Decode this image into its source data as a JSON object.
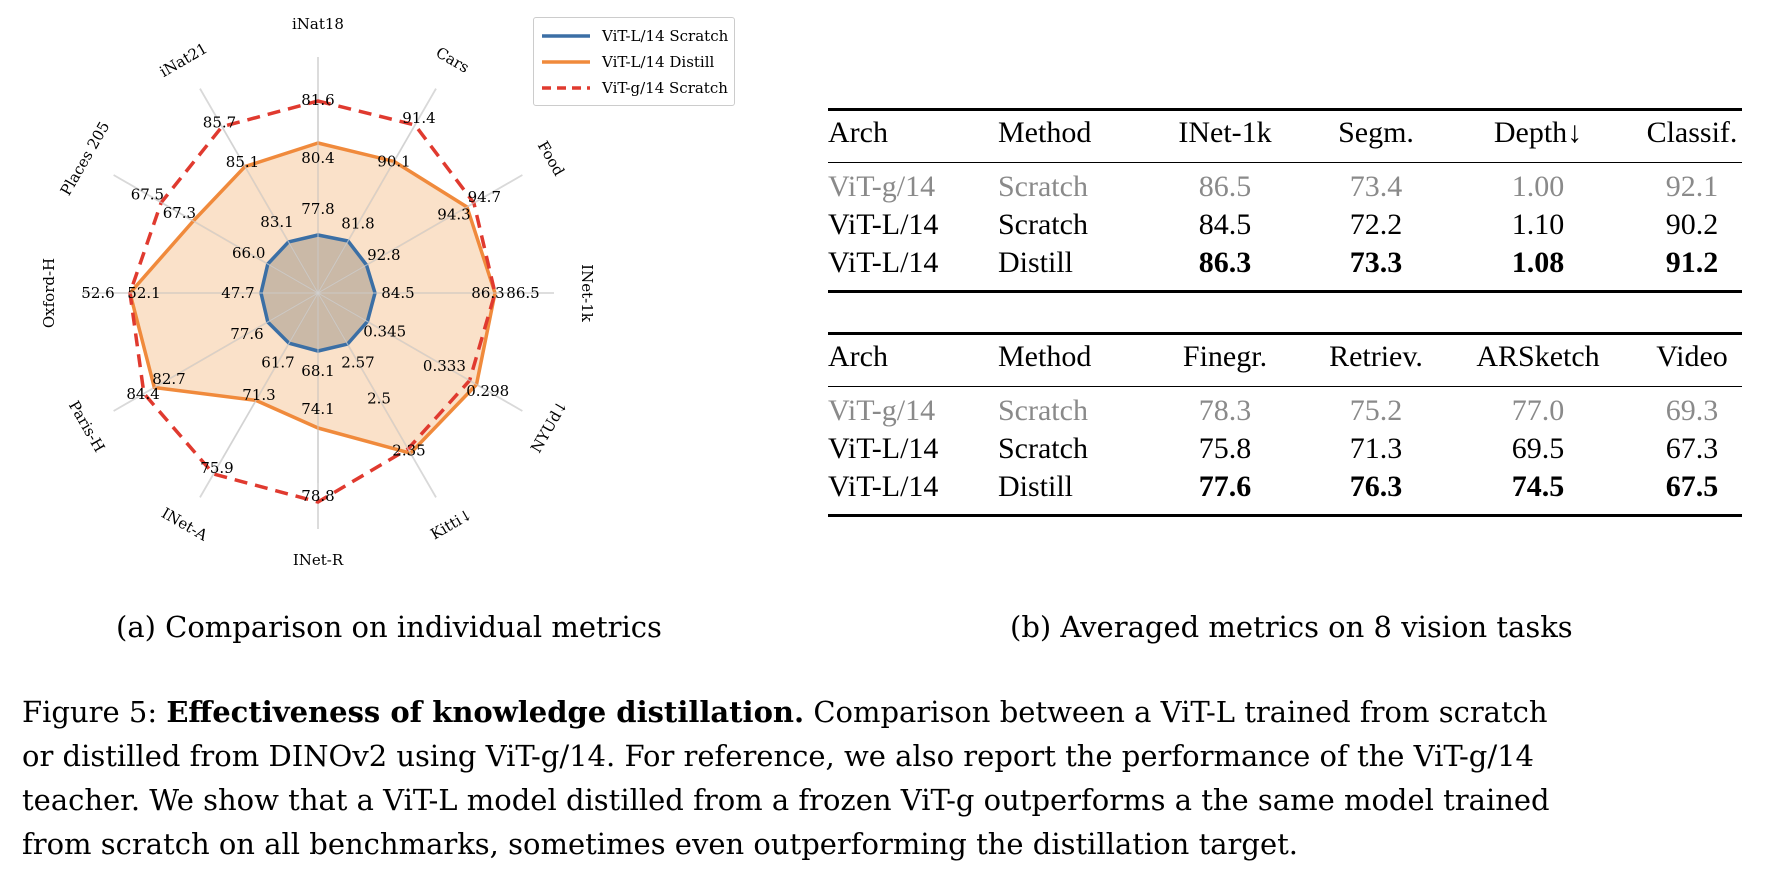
{
  "chart_data": {
    "type": "radar",
    "axes": [
      "iNat18",
      "Cars",
      "Food",
      "INet-1k",
      "NYUd↓",
      "Kitti↓",
      "INet-R",
      "INet-A",
      "Paris-H",
      "Oxford-H",
      "Places 205",
      "iNat21"
    ],
    "legend_placement": "top-right",
    "series": [
      {
        "name": "ViT-L/14 Scratch",
        "color": "#3b6fa5",
        "style": "solid",
        "labels": [
          "77.8",
          "81.8",
          "92.8",
          "84.5",
          "0.345",
          "2.57",
          "68.1",
          "61.7",
          "77.6",
          "47.7",
          "66.0",
          "83.1"
        ],
        "values": [
          77.8,
          81.8,
          92.8,
          84.5,
          0.345,
          2.57,
          68.1,
          61.7,
          77.6,
          47.7,
          66.0,
          83.1
        ]
      },
      {
        "name": "ViT-L/14 Distill",
        "color": "#f08a3c",
        "style": "solid",
        "labels": [
          "80.4",
          "90.1",
          "94.3",
          "86.3",
          "0.333",
          "2.5",
          "74.1",
          "71.3",
          "82.7",
          "52.1",
          "67.3",
          "85.1"
        ],
        "values": [
          80.4,
          90.1,
          94.3,
          86.3,
          0.333,
          2.5,
          74.1,
          71.3,
          82.7,
          52.1,
          67.3,
          85.1
        ]
      },
      {
        "name": "ViT-g/14 Scratch",
        "color": "#e03a2f",
        "style": "dashed",
        "labels": [
          "81.6",
          "91.4",
          "94.7",
          "86.5",
          "0.298",
          "2.35",
          "78.8",
          "75.9",
          "84.4",
          "52.6",
          "67.5",
          "85.7"
        ],
        "values": [
          81.6,
          91.4,
          94.7,
          86.5,
          0.298,
          2.35,
          78.8,
          75.9,
          84.4,
          52.6,
          67.5,
          85.7
        ]
      }
    ],
    "caption": "(a) Comparison on individual metrics"
  },
  "tables": [
    {
      "headers": [
        "Arch",
        "Method",
        "INet-1k",
        "Segm.",
        "Depth↓",
        "Classif."
      ],
      "rows": [
        {
          "style": "gray",
          "cells": [
            "ViT-g/14",
            "Scratch",
            "86.5",
            "73.4",
            "1.00",
            "92.1"
          ]
        },
        {
          "style": "normal",
          "cells": [
            "ViT-L/14",
            "Scratch",
            "84.5",
            "72.2",
            "1.10",
            "90.2"
          ]
        },
        {
          "style": "bold",
          "cells": [
            "ViT-L/14",
            "Distill",
            "86.3",
            "73.3",
            "1.08",
            "91.2"
          ]
        }
      ]
    },
    {
      "headers": [
        "Arch",
        "Method",
        "Finegr.",
        "Retriev.",
        "ARSketch",
        "Video"
      ],
      "rows": [
        {
          "style": "gray",
          "cells": [
            "ViT-g/14",
            "Scratch",
            "78.3",
            "75.2",
            "77.0",
            "69.3"
          ]
        },
        {
          "style": "normal",
          "cells": [
            "ViT-L/14",
            "Scratch",
            "75.8",
            "71.3",
            "69.5",
            "67.3"
          ]
        },
        {
          "style": "bold",
          "cells": [
            "ViT-L/14",
            "Distill",
            "77.6",
            "76.3",
            "74.5",
            "67.5"
          ]
        }
      ]
    }
  ],
  "table_caption": "(b) Averaged metrics on 8 vision tasks",
  "figure_caption": {
    "label": "Figure 5:",
    "bold": "Effectiveness of knowledge distillation.",
    "lines": [
      "Comparison between a ViT-L trained from scratch",
      "or distilled from DINOv2 using ViT-g/14.  For reference, we also report the performance of the ViT-g/14",
      "teacher. We show that a ViT-L model distilled from a frozen ViT-g outperforms a the same model trained",
      "from scratch on all benchmarks, sometimes even outperforming the distillation target."
    ]
  }
}
